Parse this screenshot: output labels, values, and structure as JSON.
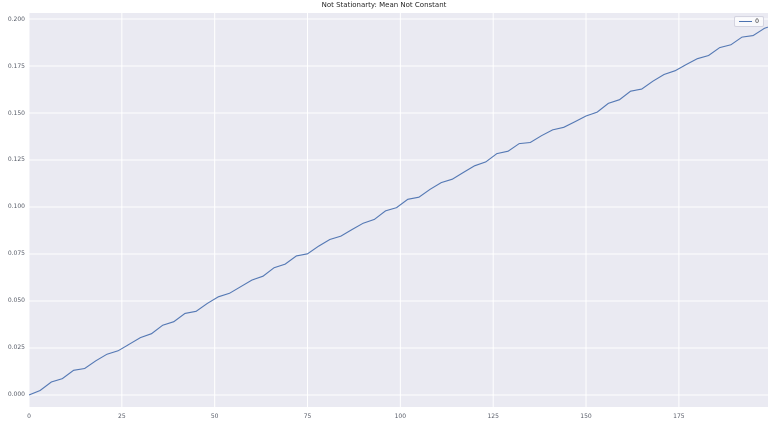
{
  "figure": {
    "background": "#ffffff",
    "plot_background": "#eaeaf2",
    "grid_color": "#ffffff",
    "tick_label_color": "#555a66",
    "title_color": "#262626"
  },
  "legend": {
    "entries": [
      {
        "label": "0",
        "color": "#4C72B0"
      }
    ],
    "position": "upper right"
  },
  "chart_data": {
    "type": "line",
    "title": "Not Stationarty: Mean Not Constant",
    "xlabel": "",
    "ylabel": "",
    "xlim": [
      0,
      199
    ],
    "ylim": [
      -0.0064,
      0.2032
    ],
    "grid": true,
    "legend_position": "upper right",
    "xticks": [
      0,
      25,
      50,
      75,
      100,
      125,
      150,
      175
    ],
    "xtick_labels": [
      "0",
      "25",
      "50",
      "75",
      "100",
      "125",
      "150",
      "175"
    ],
    "yticks": [
      0.0,
      0.025,
      0.05,
      0.075,
      0.1,
      0.125,
      0.15,
      0.175,
      0.2
    ],
    "ytick_labels": [
      "0.000",
      "0.025",
      "0.050",
      "0.075",
      "0.100",
      "0.125",
      "0.150",
      "0.175",
      "0.200"
    ],
    "series": [
      {
        "name": "0",
        "color": "#4C72B0",
        "points": [
          [
            0,
            0.0
          ],
          [
            3,
            0.0024
          ],
          [
            6,
            0.0069
          ],
          [
            9,
            0.0087
          ],
          [
            12,
            0.0131
          ],
          [
            15,
            0.0141
          ],
          [
            18,
            0.0182
          ],
          [
            21,
            0.0217
          ],
          [
            24,
            0.0235
          ],
          [
            27,
            0.027
          ],
          [
            30,
            0.0305
          ],
          [
            33,
            0.0326
          ],
          [
            36,
            0.0371
          ],
          [
            39,
            0.039
          ],
          [
            42,
            0.0434
          ],
          [
            45,
            0.0445
          ],
          [
            48,
            0.0487
          ],
          [
            51,
            0.0522
          ],
          [
            54,
            0.0541
          ],
          [
            57,
            0.0576
          ],
          [
            60,
            0.0611
          ],
          [
            63,
            0.0632
          ],
          [
            66,
            0.0677
          ],
          [
            69,
            0.0696
          ],
          [
            72,
            0.074
          ],
          [
            75,
            0.0751
          ],
          [
            78,
            0.0792
          ],
          [
            81,
            0.0827
          ],
          [
            84,
            0.0845
          ],
          [
            87,
            0.088
          ],
          [
            90,
            0.0914
          ],
          [
            93,
            0.0934
          ],
          [
            96,
            0.0979
          ],
          [
            99,
            0.0997
          ],
          [
            102,
            0.1041
          ],
          [
            105,
            0.1052
          ],
          [
            108,
            0.1094
          ],
          [
            111,
            0.113
          ],
          [
            114,
            0.1148
          ],
          [
            117,
            0.1184
          ],
          [
            120,
            0.1219
          ],
          [
            123,
            0.124
          ],
          [
            126,
            0.1284
          ],
          [
            129,
            0.1297
          ],
          [
            132,
            0.1337
          ],
          [
            135,
            0.1343
          ],
          [
            138,
            0.1379
          ],
          [
            141,
            0.141
          ],
          [
            144,
            0.1424
          ],
          [
            147,
            0.1454
          ],
          [
            150,
            0.1484
          ],
          [
            153,
            0.1505
          ],
          [
            156,
            0.1551
          ],
          [
            159,
            0.1571
          ],
          [
            162,
            0.1616
          ],
          [
            165,
            0.1627
          ],
          [
            168,
            0.1669
          ],
          [
            171,
            0.1705
          ],
          [
            174,
            0.1725
          ],
          [
            177,
            0.1758
          ],
          [
            180,
            0.1789
          ],
          [
            183,
            0.1806
          ],
          [
            186,
            0.1848
          ],
          [
            189,
            0.1863
          ],
          [
            192,
            0.1904
          ],
          [
            195,
            0.1912
          ],
          [
            198,
            0.195
          ],
          [
            199,
            0.1957
          ]
        ]
      }
    ]
  }
}
